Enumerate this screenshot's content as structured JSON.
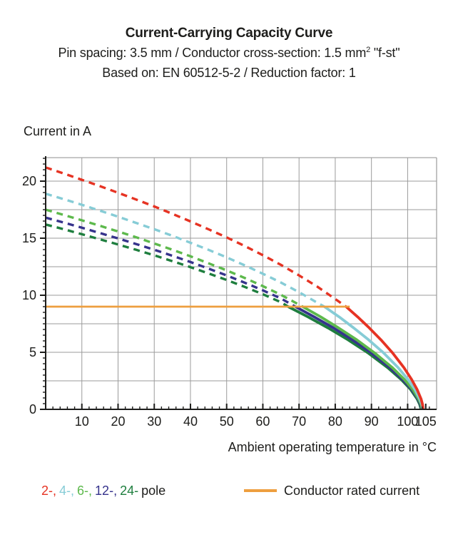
{
  "header": {
    "title": "Current-Carrying Capacity Curve",
    "spec_prefix": "Pin spacing: 3.5 mm / Conductor cross-section: 1.5 mm",
    "spec_sup": "2",
    "spec_suffix": " \"f-st\"",
    "basis": "Based on: EN 60512-5-2 / Reduction factor: 1"
  },
  "chart": {
    "y_axis_label": "Current in A",
    "x_axis_label": "Ambient operating temperature in °C"
  },
  "legend": {
    "pole_items": [
      {
        "label": "2-,",
        "color": "#e63323"
      },
      {
        "label": "4-,",
        "color": "#86ccd6"
      },
      {
        "label": "6-,",
        "color": "#5db94c"
      },
      {
        "label": "12-,",
        "color": "#36338c"
      },
      {
        "label": "24-",
        "color": "#1e7e3e"
      }
    ],
    "pole_suffix": "pole",
    "rated_label": "Conductor rated current",
    "rated_color": "#ee9f3f"
  },
  "chart_data": {
    "type": "line",
    "title": "Current-Carrying Capacity Curve",
    "xlabel": "Ambient operating temperature in °C",
    "ylabel": "Current in A",
    "xlim": [
      0,
      108
    ],
    "ylim": [
      0,
      22.06
    ],
    "x_ticks": [
      10,
      20,
      30,
      40,
      50,
      60,
      70,
      80,
      90,
      100,
      105
    ],
    "y_ticks": [
      0,
      5,
      10,
      15,
      20
    ],
    "x_gridlines": [
      10,
      20,
      30,
      40,
      50,
      60,
      70,
      80,
      90,
      100
    ],
    "y_gridlines": [
      2.5,
      5,
      7.5,
      10,
      12.5,
      15,
      17.5,
      20
    ],
    "x_minor_step": 2,
    "y_minor_step": 0.5,
    "grid_color": "#9b9b9b",
    "axis_color": "#1d1d1b",
    "series": [
      {
        "name": "24-pole",
        "poles": 24,
        "color": "#1e7e3e",
        "dashed": [
          [
            0,
            16.2
          ],
          [
            5,
            15.79
          ],
          [
            10,
            15.35
          ],
          [
            15,
            14.9
          ],
          [
            20,
            14.45
          ],
          [
            25,
            13.98
          ],
          [
            30,
            13.5
          ],
          [
            35,
            12.99
          ],
          [
            40,
            12.46
          ],
          [
            45,
            11.91
          ],
          [
            50,
            11.34
          ],
          [
            55,
            10.73
          ],
          [
            60,
            10.09
          ],
          [
            65,
            9.39
          ],
          [
            67,
            9
          ]
        ],
        "solid": [
          [
            67,
            9
          ],
          [
            72.5,
            8.1
          ],
          [
            78,
            7.14
          ],
          [
            83.5,
            6.1
          ],
          [
            89,
            4.96
          ],
          [
            94.5,
            3.65
          ],
          [
            98.2,
            2.62
          ],
          [
            100.8,
            1.75
          ],
          [
            102.6,
            0.92
          ],
          [
            103.3,
            0.45
          ],
          [
            103.7,
            0
          ]
        ]
      },
      {
        "name": "12-pole",
        "poles": 12,
        "color": "#36338c",
        "dashed": [
          [
            0,
            16.8
          ],
          [
            5,
            16.37
          ],
          [
            10,
            15.92
          ],
          [
            15,
            15.45
          ],
          [
            20,
            14.98
          ],
          [
            25,
            14.49
          ],
          [
            30,
            13.99
          ],
          [
            35,
            13.46
          ],
          [
            40,
            12.91
          ],
          [
            45,
            12.34
          ],
          [
            50,
            11.74
          ],
          [
            55,
            11.1
          ],
          [
            60,
            10.43
          ],
          [
            65,
            9.72
          ],
          [
            69,
            9
          ]
        ],
        "solid": [
          [
            69,
            9
          ],
          [
            74.2,
            8.1
          ],
          [
            79.5,
            7.14
          ],
          [
            84.7,
            6.1
          ],
          [
            89.9,
            4.96
          ],
          [
            95.1,
            3.65
          ],
          [
            98.6,
            2.62
          ],
          [
            101.1,
            1.75
          ],
          [
            102.8,
            0.92
          ],
          [
            103.5,
            0.45
          ],
          [
            103.9,
            0
          ]
        ]
      },
      {
        "name": "6-pole",
        "poles": 6,
        "color": "#5db94c",
        "dashed": [
          [
            0,
            17.5
          ],
          [
            5,
            17.04
          ],
          [
            10,
            16.57
          ],
          [
            15,
            16.09
          ],
          [
            20,
            15.59
          ],
          [
            25,
            15.08
          ],
          [
            30,
            14.54
          ],
          [
            35,
            13.99
          ],
          [
            40,
            13.41
          ],
          [
            45,
            12.8
          ],
          [
            50,
            12.18
          ],
          [
            55,
            11.51
          ],
          [
            60,
            10.8
          ],
          [
            65,
            10.04
          ],
          [
            71,
            9
          ]
        ],
        "solid": [
          [
            71,
            9
          ],
          [
            76,
            8.1
          ],
          [
            80.9,
            7.14
          ],
          [
            85.9,
            6.1
          ],
          [
            90.8,
            4.96
          ],
          [
            95.8,
            3.65
          ],
          [
            99.1,
            2.62
          ],
          [
            101.4,
            1.75
          ],
          [
            103,
            0.92
          ],
          [
            103.7,
            0.45
          ],
          [
            104,
            0
          ]
        ]
      },
      {
        "name": "4-pole",
        "poles": 4,
        "color": "#86ccd6",
        "dashed": [
          [
            0,
            18.9
          ],
          [
            5,
            18.42
          ],
          [
            10,
            17.93
          ],
          [
            15,
            17.41
          ],
          [
            20,
            16.89
          ],
          [
            25,
            16.34
          ],
          [
            30,
            15.79
          ],
          [
            35,
            15.21
          ],
          [
            40,
            14.6
          ],
          [
            45,
            13.98
          ],
          [
            50,
            13.32
          ],
          [
            55,
            12.62
          ],
          [
            60,
            11.89
          ],
          [
            65,
            11.11
          ],
          [
            70,
            10.27
          ],
          [
            75,
            9.35
          ],
          [
            77,
            9
          ]
        ],
        "solid": [
          [
            77,
            9
          ],
          [
            81.1,
            8.1
          ],
          [
            85.1,
            7.14
          ],
          [
            89.2,
            6.1
          ],
          [
            93.3,
            4.96
          ],
          [
            97.4,
            3.65
          ],
          [
            100.1,
            2.62
          ],
          [
            102,
            1.75
          ],
          [
            103.3,
            0.92
          ],
          [
            103.9,
            0.45
          ],
          [
            104.2,
            0
          ]
        ]
      },
      {
        "name": "2-pole",
        "poles": 2,
        "color": "#e63323",
        "dashed": [
          [
            0,
            21.2
          ],
          [
            5,
            20.67
          ],
          [
            10,
            20.12
          ],
          [
            15,
            19.56
          ],
          [
            20,
            18.98
          ],
          [
            25,
            18.39
          ],
          [
            30,
            17.78
          ],
          [
            35,
            17.14
          ],
          [
            40,
            16.47
          ],
          [
            45,
            15.78
          ],
          [
            50,
            15.07
          ],
          [
            55,
            14.31
          ],
          [
            60,
            13.51
          ],
          [
            65,
            12.66
          ],
          [
            70,
            11.74
          ],
          [
            75,
            10.76
          ],
          [
            80,
            9.67
          ],
          [
            83,
            9
          ]
        ],
        "solid": [
          [
            83,
            9
          ],
          [
            86.2,
            8.1
          ],
          [
            89.4,
            7.14
          ],
          [
            92.6,
            6.1
          ],
          [
            95.8,
            4.96
          ],
          [
            99,
            3.65
          ],
          [
            101.1,
            2.62
          ],
          [
            102.6,
            1.75
          ],
          [
            103.7,
            0.92
          ],
          [
            104.1,
            0.45
          ],
          [
            104.3,
            0
          ]
        ]
      }
    ],
    "rated_line": {
      "name": "conductor-rated-current",
      "label": "Conductor rated current",
      "color": "#ee9f3f",
      "value": 9,
      "points": [
        [
          0,
          9
        ],
        [
          84,
          9
        ]
      ]
    },
    "legend_position": "bottom"
  }
}
